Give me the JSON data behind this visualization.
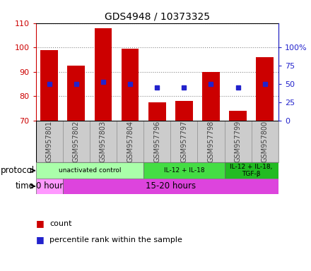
{
  "title": "GDS4948 / 10373325",
  "samples": [
    "GSM957801",
    "GSM957802",
    "GSM957803",
    "GSM957804",
    "GSM957796",
    "GSM957797",
    "GSM957798",
    "GSM957799",
    "GSM957800"
  ],
  "bar_values": [
    99.0,
    92.5,
    108.0,
    99.5,
    77.5,
    78.0,
    90.0,
    74.0,
    96.0
  ],
  "bar_bottom": 70,
  "percentile_values": [
    85,
    85,
    86,
    85,
    83.5,
    83.5,
    85,
    83.5,
    85
  ],
  "ylim": [
    70,
    110
  ],
  "yticks_left": [
    70,
    80,
    90,
    100,
    110
  ],
  "yticks_right_vals": [
    "0",
    "25",
    "50",
    "75",
    "100%"
  ],
  "yticks_right_pos": [
    70,
    77.5,
    85,
    92.5,
    100
  ],
  "bar_color": "#cc0000",
  "dot_color": "#2222cc",
  "protocol_groups": [
    {
      "label": "unactivated control",
      "start": 0,
      "end": 4,
      "color": "#aaffaa"
    },
    {
      "label": "IL-12 + IL-18",
      "start": 4,
      "end": 7,
      "color": "#44dd44"
    },
    {
      "label": "IL-12 + IL-18,\nTGF-β",
      "start": 7,
      "end": 9,
      "color": "#22bb22"
    }
  ],
  "time_groups": [
    {
      "label": "0 hour",
      "start": 0,
      "end": 1,
      "color": "#ff99ff"
    },
    {
      "label": "15-20 hours",
      "start": 1,
      "end": 9,
      "color": "#dd44dd"
    }
  ],
  "protocol_label": "protocol",
  "time_label": "time",
  "legend_count": "count",
  "legend_pct": "percentile rank within the sample",
  "grid_color": "#888888",
  "axis_left_color": "#cc0000",
  "axis_right_color": "#2222cc",
  "xticklabel_color": "#444444",
  "xtick_bg_color": "#cccccc",
  "xtick_edge_color": "#999999",
  "bar_width": 0.65,
  "spine_color": "#000000"
}
